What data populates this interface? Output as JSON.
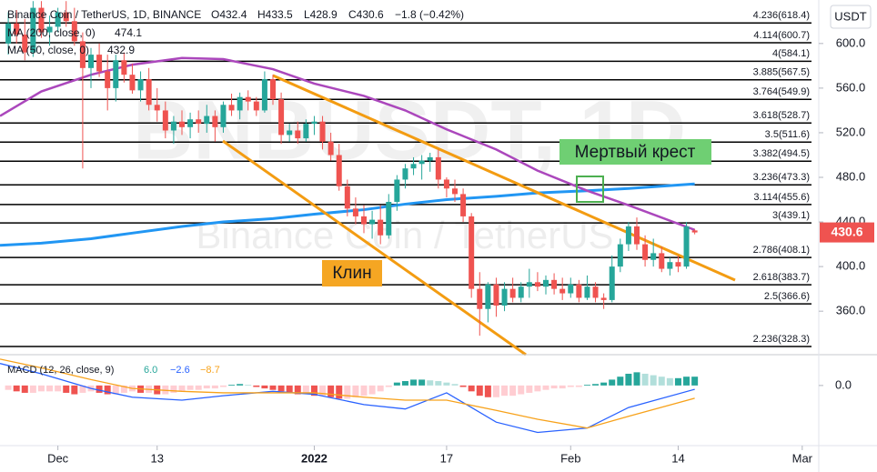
{
  "chart_data": [
    {
      "type": "candlestick",
      "symbol": "Binance Coin / TetherUS, 1D, BINANCE",
      "ohlc_legend": [
        "O432.4",
        "H433.5",
        "L428.9",
        "C430.6",
        "−1.8 (−0.42%)"
      ],
      "watermark": [
        "BNBUSDT, 1D",
        "Binance Coin / TetherUS"
      ],
      "currency": "USDT",
      "up_color": "#26a69a",
      "down_color": "#ef5350",
      "x": [
        "2021-11-25",
        "2021-11-26",
        "2021-11-27",
        "2021-11-28",
        "2021-11-29",
        "2021-11-30",
        "2021-12-01",
        "2021-12-02",
        "2021-12-03",
        "2021-12-04",
        "2021-12-05",
        "2021-12-06",
        "2021-12-07",
        "2021-12-08",
        "2021-12-09",
        "2021-12-10",
        "2021-12-11",
        "2021-12-12",
        "2021-12-13",
        "2021-12-14",
        "2021-12-15",
        "2021-12-16",
        "2021-12-17",
        "2021-12-18",
        "2021-12-19",
        "2021-12-20",
        "2021-12-21",
        "2021-12-22",
        "2021-12-23",
        "2021-12-24",
        "2021-12-25",
        "2021-12-26",
        "2021-12-27",
        "2021-12-28",
        "2021-12-29",
        "2021-12-30",
        "2021-12-31",
        "2022-01-01",
        "2022-01-02",
        "2022-01-03",
        "2022-01-04",
        "2022-01-05",
        "2022-01-06",
        "2022-01-07",
        "2022-01-08",
        "2022-01-09",
        "2022-01-10",
        "2022-01-11",
        "2022-01-12",
        "2022-01-13",
        "2022-01-14",
        "2022-01-15",
        "2022-01-16",
        "2022-01-17",
        "2022-01-18",
        "2022-01-19",
        "2022-01-20",
        "2022-01-21",
        "2022-01-22",
        "2022-01-23",
        "2022-01-24",
        "2022-01-25",
        "2022-01-26",
        "2022-01-27",
        "2022-01-28",
        "2022-01-29",
        "2022-01-30",
        "2022-01-31",
        "2022-02-01",
        "2022-02-02",
        "2022-02-03",
        "2022-02-04",
        "2022-02-05",
        "2022-02-06",
        "2022-02-07",
        "2022-02-08",
        "2022-02-09",
        "2022-02-10",
        "2022-02-11",
        "2022-02-12",
        "2022-02-13",
        "2022-02-14",
        "2022-02-15",
        "2022-02-16"
      ],
      "open": [
        600,
        618,
        608,
        592,
        632,
        610,
        615,
        628,
        620,
        602,
        578,
        590,
        575,
        560,
        585,
        572,
        558,
        568,
        545,
        540,
        522,
        530,
        525,
        532,
        528,
        535,
        525,
        545,
        540,
        552,
        548,
        540,
        568,
        550,
        518,
        522,
        515,
        528,
        530,
        512,
        500,
        472,
        452,
        445,
        438,
        442,
        428,
        458,
        478,
        488,
        492,
        495,
        498,
        478,
        470,
        465,
        445,
        380,
        362,
        384,
        365,
        380,
        372,
        382,
        386,
        382,
        388,
        380,
        376,
        384,
        372,
        382,
        372,
        370,
        400,
        420,
        436,
        420,
        406,
        412,
        398,
        404,
        400,
        432.4
      ],
      "high": [
        628,
        630,
        622,
        638,
        638,
        625,
        632,
        638,
        632,
        610,
        596,
        600,
        590,
        590,
        592,
        582,
        575,
        578,
        560,
        548,
        535,
        540,
        538,
        540,
        545,
        540,
        548,
        555,
        556,
        558,
        552,
        575,
        572,
        556,
        528,
        530,
        532,
        535,
        535,
        520,
        510,
        478,
        462,
        455,
        450,
        455,
        465,
        482,
        492,
        498,
        500,
        502,
        505,
        480,
        478,
        470,
        448,
        395,
        386,
        390,
        386,
        390,
        386,
        398,
        395,
        392,
        394,
        390,
        390,
        388,
        392,
        386,
        376,
        410,
        425,
        440,
        444,
        428,
        425,
        418,
        408,
        410,
        440,
        433.5
      ],
      "low": [
        590,
        600,
        585,
        588,
        605,
        598,
        610,
        615,
        598,
        488,
        560,
        570,
        540,
        548,
        565,
        555,
        548,
        540,
        530,
        515,
        510,
        518,
        515,
        520,
        520,
        512,
        520,
        535,
        532,
        540,
        535,
        538,
        545,
        510,
        512,
        510,
        512,
        518,
        505,
        495,
        468,
        445,
        438,
        430,
        425,
        420,
        425,
        450,
        470,
        482,
        478,
        485,
        470,
        462,
        458,
        440,
        372,
        338,
        350,
        355,
        360,
        368,
        368,
        372,
        378,
        375,
        375,
        370,
        372,
        368,
        370,
        368,
        362,
        368,
        395,
        414,
        415,
        400,
        400,
        395,
        392,
        395,
        398,
        428.9
      ],
      "close": [
        618,
        608,
        592,
        632,
        610,
        615,
        628,
        620,
        602,
        578,
        590,
        575,
        560,
        585,
        572,
        558,
        568,
        545,
        540,
        522,
        530,
        525,
        532,
        528,
        535,
        525,
        545,
        540,
        552,
        548,
        540,
        568,
        550,
        518,
        522,
        515,
        528,
        530,
        512,
        500,
        472,
        452,
        445,
        438,
        442,
        428,
        458,
        478,
        488,
        492,
        495,
        498,
        478,
        470,
        465,
        445,
        380,
        362,
        384,
        365,
        380,
        372,
        382,
        386,
        382,
        388,
        380,
        376,
        384,
        372,
        382,
        372,
        370,
        400,
        420,
        436,
        420,
        406,
        412,
        398,
        404,
        400,
        436,
        430.6
      ],
      "series": [
        {
          "name": "MA (200, close, 0)",
          "color": "#2196f3",
          "x": [
            "2021-11-24",
            "2021-11-29",
            "2021-12-05",
            "2021-12-10",
            "2021-12-16",
            "2021-12-21",
            "2021-12-27",
            "2022-01-01",
            "2022-01-07",
            "2022-01-12",
            "2022-01-17",
            "2022-01-23",
            "2022-01-28",
            "2022-02-03",
            "2022-02-08",
            "2022-02-16"
          ],
          "values": [
            419,
            421,
            425,
            430,
            436,
            440,
            443,
            447,
            451,
            456,
            460,
            463,
            466,
            468,
            470,
            474.1
          ]
        },
        {
          "name": "MA (50, close, 0)",
          "color": "#ab47bc",
          "x": [
            "2021-11-24",
            "2021-11-29",
            "2021-12-05",
            "2021-12-10",
            "2021-12-16",
            "2021-12-21",
            "2021-12-27",
            "2022-01-01",
            "2022-01-07",
            "2022-01-12",
            "2022-01-17",
            "2022-01-23",
            "2022-01-28",
            "2022-02-03",
            "2022-02-08",
            "2022-02-16"
          ],
          "values": [
            535,
            557,
            572,
            581,
            587,
            586,
            577,
            564,
            553,
            540,
            523,
            505,
            486,
            468,
            455,
            432.9
          ]
        }
      ],
      "fib_levels": [
        {
          "label": "4.236(618.4)",
          "price": 618.4
        },
        {
          "label": "4.114(600.7)",
          "price": 600.7
        },
        {
          "label": "4(584.1)",
          "price": 584.1
        },
        {
          "label": "3.885(567.5)",
          "price": 567.5
        },
        {
          "label": "3.764(549.9)",
          "price": 549.9
        },
        {
          "label": "3.618(528.7)",
          "price": 528.7
        },
        {
          "label": "3.5(511.6)",
          "price": 511.6
        },
        {
          "label": "3.382(494.5)",
          "price": 494.5
        },
        {
          "label": "3.236(473.3)",
          "price": 473.3
        },
        {
          "label": "3.114(455.6)",
          "price": 455.6
        },
        {
          "label": "3(439.1)",
          "price": 439.1
        },
        {
          "label": "2.786(408.1)",
          "price": 408.1
        },
        {
          "label": "2.618(383.7)",
          "price": 383.7
        },
        {
          "label": "2.5(366.6)",
          "price": 366.6
        },
        {
          "label": "2.236(328.3)",
          "price": 328.3
        }
      ],
      "annotations": [
        "Мертвый крест",
        "Клин"
      ],
      "xlim": [
        "2021-11-24",
        "2022-03-03"
      ],
      "xticks": [
        {
          "value": "2021-12-01",
          "label": "Dec"
        },
        {
          "value": "2021-12-13",
          "label": "13"
        },
        {
          "value": "2022-01-01",
          "label": "2022"
        },
        {
          "value": "2022-01-17",
          "label": "17"
        },
        {
          "value": "2022-02-01",
          "label": "Feb"
        },
        {
          "value": "2022-02-14",
          "label": "14"
        },
        {
          "value": "2022-03-01",
          "label": "Mar"
        }
      ],
      "ylim": [
        321,
        639
      ],
      "yticks": [
        {
          "value": 600,
          "label": "600.0"
        },
        {
          "value": 560,
          "label": "560.0"
        },
        {
          "value": 520,
          "label": "520.0"
        },
        {
          "value": 480,
          "label": "480.0"
        },
        {
          "value": 440,
          "label": "440.0"
        },
        {
          "value": 400,
          "label": "400.0"
        },
        {
          "value": 360,
          "label": "360.0"
        }
      ],
      "grid": false
    },
    {
      "type": "macd",
      "title": "MACD (12, 26, close, 9)",
      "last_labels": [
        "6.0",
        "−2.6",
        "−8.7"
      ],
      "histogram": [
        -3,
        -4,
        -5,
        -5,
        -4,
        -4,
        -4,
        -5,
        -6,
        -5,
        -4,
        -5,
        -6,
        -6,
        -5,
        -4,
        -5,
        -5,
        -6,
        -6,
        -5,
        -4,
        -3,
        -3,
        -2,
        -2,
        -1,
        0.5,
        1,
        0.5,
        -1,
        -2,
        -3,
        -4,
        -5,
        -6,
        -6,
        -7,
        -7,
        -8,
        -9,
        -9,
        -8,
        -7,
        -6,
        -4,
        -1,
        2,
        3,
        4,
        4,
        3.5,
        3,
        2,
        1,
        -1,
        -4,
        -7,
        -8,
        -8,
        -7,
        -7,
        -6,
        -5,
        -4,
        -3,
        -2,
        -2,
        -1,
        -1,
        0.5,
        1,
        2,
        4,
        6,
        8,
        9,
        8,
        7,
        6,
        5,
        5,
        6,
        6.0
      ],
      "series": [
        {
          "name": "MACD",
          "color": "#2962ff",
          "x": [
            "2021-11-24",
            "2021-11-29",
            "2021-12-05",
            "2021-12-10",
            "2021-12-16",
            "2021-12-21",
            "2021-12-27",
            "2022-01-01",
            "2022-01-07",
            "2022-01-12",
            "2022-01-17",
            "2022-01-23",
            "2022-01-28",
            "2022-02-03",
            "2022-02-08",
            "2022-02-16"
          ],
          "values": [
            15,
            8,
            -2,
            -8,
            -10,
            -7,
            -4,
            -6,
            -13,
            -16,
            -5,
            -25,
            -32,
            -29,
            -15,
            -2.6
          ]
        },
        {
          "name": "Signal",
          "color": "#f7a21b",
          "x": [
            "2021-11-24",
            "2021-11-29",
            "2021-12-05",
            "2021-12-10",
            "2021-12-16",
            "2021-12-21",
            "2021-12-27",
            "2022-01-01",
            "2022-01-07",
            "2022-01-12",
            "2022-01-17",
            "2022-01-23",
            "2022-01-28",
            "2022-02-03",
            "2022-02-08",
            "2022-02-16"
          ],
          "values": [
            18,
            12,
            4,
            -2,
            -4,
            -5,
            -5,
            -5,
            -8,
            -10,
            -10,
            -17,
            -23,
            -29,
            -21,
            -8.7
          ]
        }
      ],
      "ylim": [
        -41,
        21
      ],
      "yticks": [
        {
          "value": 0,
          "label": "0.0"
        }
      ]
    }
  ]
}
